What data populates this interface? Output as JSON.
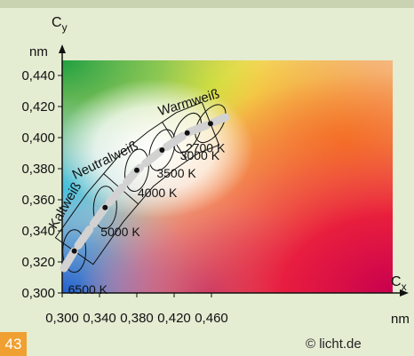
{
  "page_number": "43",
  "copyright": "© licht.de",
  "chart_data": {
    "type": "scatter",
    "background": "CIE chromaticity diagram (color spectrum)",
    "y_axis": {
      "label_main": "C",
      "label_sub": "y",
      "unit": "nm",
      "range": [
        0.3,
        0.45
      ],
      "ticks": [
        "0,440",
        "0,420",
        "0,400",
        "0,380",
        "0,360",
        "0,340",
        "0,320",
        "0,300"
      ],
      "tick_values": [
        0.44,
        0.42,
        0.4,
        0.38,
        0.36,
        0.34,
        0.32,
        0.3
      ]
    },
    "x_axis": {
      "label_main": "C",
      "label_sub": "x",
      "unit": "nm",
      "range": [
        0.3,
        0.48
      ],
      "ticks": [
        "0,300",
        "0,340",
        "0,380",
        "0,420",
        "0,460"
      ],
      "tick_values": [
        0.3,
        0.34,
        0.38,
        0.42,
        0.46
      ]
    },
    "points": [
      {
        "label": "6500 K",
        "x": 0.313,
        "y": 0.327
      },
      {
        "label": "5000 K",
        "x": 0.346,
        "y": 0.355
      },
      {
        "label": "4000 K",
        "x": 0.38,
        "y": 0.379
      },
      {
        "label": "3500 K",
        "x": 0.407,
        "y": 0.392
      },
      {
        "label": "3000 K",
        "x": 0.434,
        "y": 0.403
      },
      {
        "label": "2700 K",
        "x": 0.459,
        "y": 0.409
      }
    ],
    "planckian_locus": [
      {
        "x": 0.302,
        "y": 0.316
      },
      {
        "x": 0.313,
        "y": 0.327
      },
      {
        "x": 0.346,
        "y": 0.355
      },
      {
        "x": 0.38,
        "y": 0.379
      },
      {
        "x": 0.407,
        "y": 0.392
      },
      {
        "x": 0.434,
        "y": 0.403
      },
      {
        "x": 0.459,
        "y": 0.409
      },
      {
        "x": 0.475,
        "y": 0.413
      }
    ],
    "regions": [
      {
        "label": "Kaltweiß",
        "x": 0.307,
        "y": 0.355,
        "rotate": -60
      },
      {
        "label": "Neutralweiß",
        "x": 0.348,
        "y": 0.383,
        "rotate": -26
      },
      {
        "label": "Warmweiß",
        "x": 0.437,
        "y": 0.42,
        "rotate": -17
      }
    ],
    "colors": {
      "locus": "#d2d2d2",
      "point": "#111111",
      "outline": "#111111"
    }
  }
}
